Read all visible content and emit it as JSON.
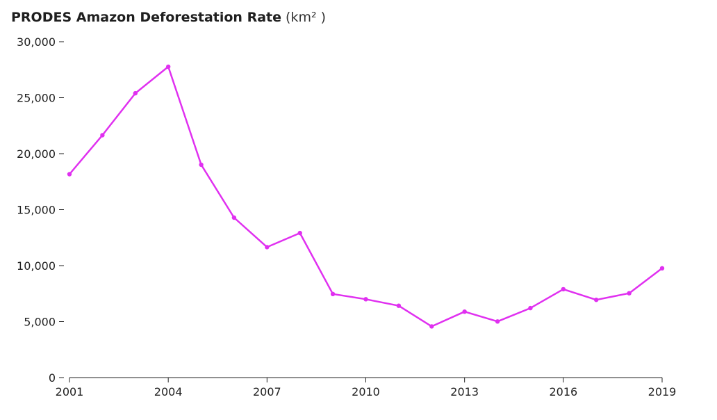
{
  "chart_data": {
    "type": "line",
    "title": "PRODES Amazon Deforestation Rate",
    "unit": "(km² )",
    "xlabel": "",
    "ylabel": "",
    "ylim": [
      0,
      30000
    ],
    "xlim": [
      2001,
      2019
    ],
    "y_ticks": [
      {
        "value": 0,
        "label": "0"
      },
      {
        "value": 5000,
        "label": "5,000"
      },
      {
        "value": 10000,
        "label": "10,000"
      },
      {
        "value": 15000,
        "label": "15,000"
      },
      {
        "value": 20000,
        "label": "20,000"
      },
      {
        "value": 25000,
        "label": "25,000"
      },
      {
        "value": 30000,
        "label": "30,000"
      }
    ],
    "x_ticks": [
      {
        "value": 2001,
        "label": "2001"
      },
      {
        "value": 2004,
        "label": "2004"
      },
      {
        "value": 2007,
        "label": "2007"
      },
      {
        "value": 2010,
        "label": "2010"
      },
      {
        "value": 2013,
        "label": "2013"
      },
      {
        "value": 2016,
        "label": "2016"
      },
      {
        "value": 2019,
        "label": "2019"
      }
    ],
    "grid": false,
    "line_color": "#e030f0",
    "series": [
      {
        "x": [
          2001,
          2002,
          2003,
          2004,
          2005,
          2006,
          2007,
          2008,
          2009,
          2010,
          2011,
          2012,
          2013,
          2014,
          2015,
          2016,
          2017,
          2018,
          2019
        ],
        "values": [
          18165,
          21650,
          25396,
          27772,
          19014,
          14286,
          11651,
          12911,
          7464,
          7000,
          6418,
          4571,
          5891,
          5012,
          6207,
          7893,
          6947,
          7536,
          9762
        ]
      }
    ]
  }
}
